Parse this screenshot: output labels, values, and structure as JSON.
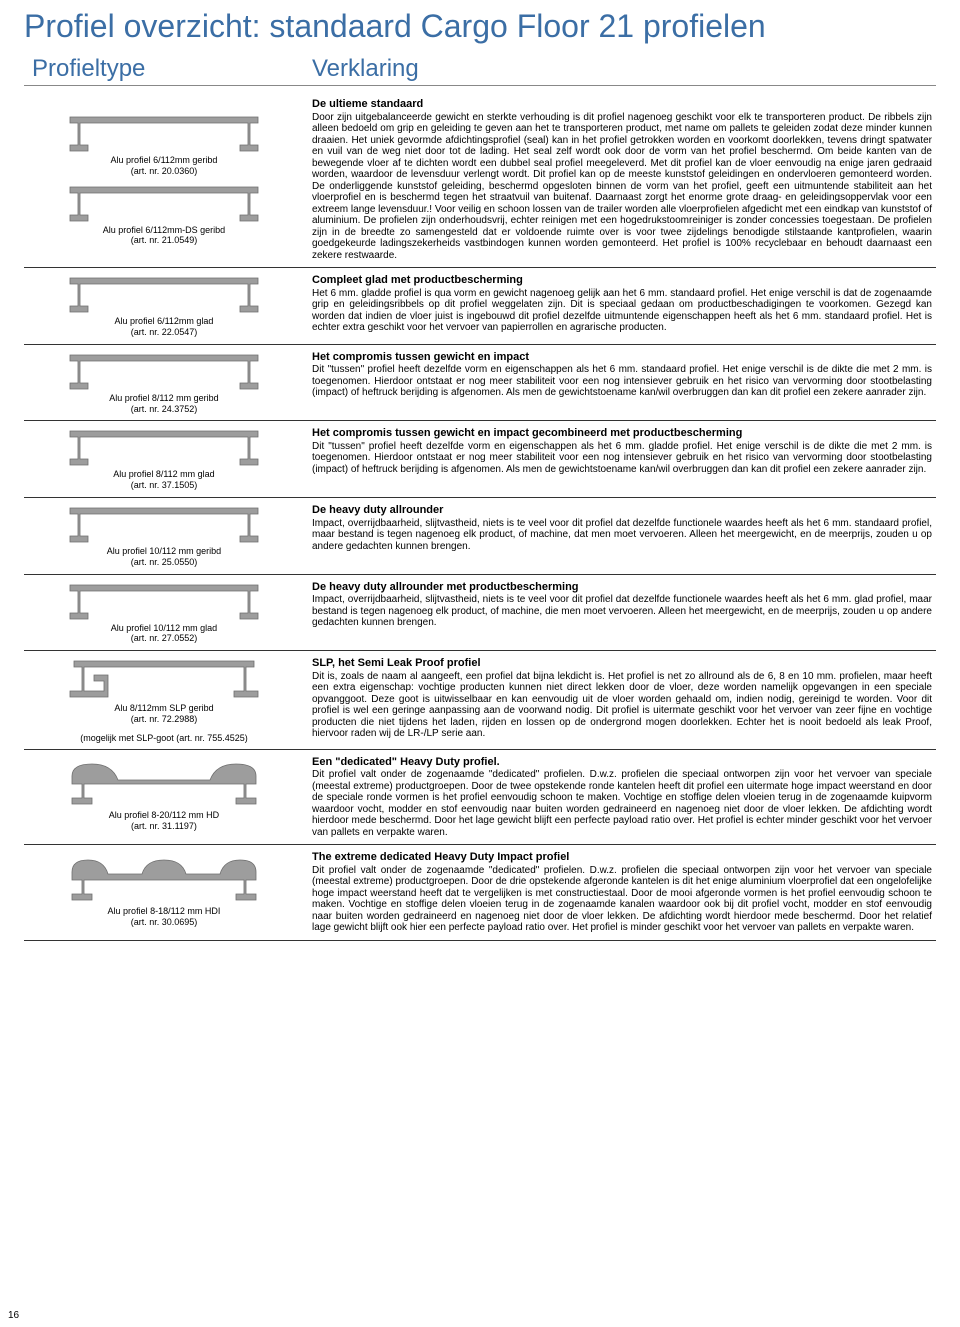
{
  "title": "Profiel overzicht: standaard Cargo Floor 21 profielen",
  "col_left_header": "Profieltype",
  "col_right_header": "Verklaring",
  "colors": {
    "brand_blue": "#3b6ea5",
    "rule": "#333333",
    "profile_fill": "#9d9d9d",
    "profile_edge": "#6e6e6e"
  },
  "page_number": "16",
  "rows": [
    {
      "profiles": [
        {
          "name": "Alu profiel 6/112mm geribd",
          "art": "(art. nr. 20.0360)",
          "shape": "std"
        },
        {
          "name": "Alu profiel 6/112mm-DS geribd",
          "art": "(art. nr. 21.0549)",
          "shape": "std"
        }
      ],
      "heading": "De ultieme standaard",
      "body": "Door zijn uitgebalanceerde gewicht en sterkte verhouding is dit profiel nagenoeg geschikt voor elk te transporteren product. De ribbels zijn alleen bedoeld om grip en geleiding te geven aan het te transporteren product, met name om pallets te geleiden zodat deze minder kunnen draaien. Het uniek gevormde afdichtingsprofiel (seal) kan in het profiel getrokken worden en voorkomt doorlekken, tevens dringt spatwater en vuil van de weg niet door tot de lading. Het seal zelf wordt ook door de vorm van het profiel beschermd. Om beide kanten van de bewegende vloer af te dichten wordt een dubbel seal profiel meegeleverd. Met dit profiel kan de vloer eenvoudig na enige jaren gedraaid worden, waardoor de levensduur verlengt wordt. Dit profiel kan op de meeste kunststof geleidingen en ondervloeren gemonteerd worden. De onderliggende kunststof geleiding, beschermd opgesloten binnen de vorm van het profiel, geeft een uitmuntende stabiliteit aan het vloerprofiel en is beschermd tegen het straatvuil van buitenaf. Daarnaast zorgt het enorme grote draag- en geleidingsoppervlak voor een extreem lange levensduur.! Voor veilig en schoon lossen van de trailer worden alle vloerprofielen afgedicht met een eindkap van kunststof of aluminium. De profielen zijn onderhoudsvrij, echter reinigen met een hogedrukstoomreiniger is zonder concessies toegestaan. De profielen zijn in de breedte zo samengesteld dat er voldoende ruimte over is voor twee zijdelings benodigde stilstaande kantprofielen, waarin goedgekeurde ladingszekerheids vastbindogen kunnen worden gemonteerd. Het profiel is 100% recyclebaar en behoudt daarnaast een zekere restwaarde."
    },
    {
      "profiles": [
        {
          "name": "Alu profiel 6/112mm glad",
          "art": "(art. nr. 22.0547)",
          "shape": "std"
        }
      ],
      "heading": "Compleet glad met productbescherming",
      "body": "Het 6 mm. gladde profiel is qua vorm en gewicht nagenoeg gelijk aan het 6 mm. standaard profiel. Het enige verschil is dat de zogenaamde grip en geleidingsribbels op dit profiel weggelaten zijn. Dit is speciaal gedaan om productbeschadigingen te voorkomen. Gezegd kan worden dat indien de vloer juist is ingebouwd dit profiel dezelfde uitmuntende eigenschappen heeft als het 6 mm. standaard profiel. Het is echter extra geschikt voor het vervoer van papierrollen en agrarische producten."
    },
    {
      "profiles": [
        {
          "name": "Alu profiel 8/112 mm geribd",
          "art": "(art. nr. 24.3752)",
          "shape": "std"
        }
      ],
      "heading": "Het compromis tussen gewicht en impact",
      "body": "Dit \"tussen\" profiel heeft dezelfde vorm en eigenschappen als het 6 mm. standaard profiel. Het enige verschil is de dikte die met 2 mm. is toegenomen. Hierdoor ontstaat er nog meer stabiliteit voor een nog intensiever gebruik en het risico van vervorming door stootbelasting (impact) of heftruck berijding is afgenomen. Als men de gewichtstoename kan/wil overbruggen dan kan dit profiel een zekere aanrader zijn."
    },
    {
      "profiles": [
        {
          "name": "Alu profiel 8/112 mm glad",
          "art": "(art. nr. 37.1505)",
          "shape": "std"
        }
      ],
      "heading": "Het compromis tussen gewicht en impact gecombineerd met productbescherming",
      "body": "Dit \"tussen\" profiel heeft dezelfde vorm en eigenschappen als het 6 mm. gladde profiel. Het enige verschil is de dikte die met 2 mm. is toegenomen. Hierdoor ontstaat er nog meer stabiliteit voor een nog intensiever gebruik en het risico van vervorming door stootbelasting (impact) of heftruck berijding is afgenomen. Als men de gewichtstoename kan/wil overbruggen dan kan dit profiel een zekere aanrader zijn."
    },
    {
      "profiles": [
        {
          "name": "Alu profiel 10/112 mm geribd",
          "art": "(art. nr. 25.0550)",
          "shape": "std"
        }
      ],
      "heading": "De heavy duty allrounder",
      "body": "Impact, overrijdbaarheid, slijtvastheid, niets is te veel voor dit profiel dat dezelfde functionele waardes heeft als het 6 mm. standaard profiel, maar bestand is tegen nagenoeg elk product, of machine, dat men moet vervoeren. Alleen het meergewicht, en de meerprijs, zouden u op andere gedachten kunnen brengen."
    },
    {
      "profiles": [
        {
          "name": "Alu profiel 10/112 mm glad",
          "art": "(art. nr. 27.0552)",
          "shape": "std"
        }
      ],
      "heading": "De heavy duty allrounder met productbescherming",
      "body": "Impact, overrijdbaarheid, slijtvastheid, niets is te veel voor dit profiel dat dezelfde functionele waardes heeft als het 6 mm. glad profiel, maar bestand is tegen nagenoeg elk product, of machine, die men moet vervoeren. Alleen het meergewicht, en de meerprijs, zouden u op andere gedachten kunnen brengen."
    },
    {
      "profiles": [
        {
          "name": "Alu 8/112mm SLP geribd",
          "art": "(art. nr. 72.2988)",
          "shape": "slp"
        }
      ],
      "extra": "(mogelijk met SLP-goot (art. nr. 755.4525)",
      "heading": "SLP, het Semi Leak Proof profiel",
      "body": "Dit is, zoals de naam al aangeeft, een profiel dat bijna lekdicht is. Het profiel is net zo allround als de 6, 8 en 10 mm. profielen, maar heeft een extra eigenschap: vochtige producten kunnen niet direct lekken door de vloer, deze worden namelijk opgevangen in een speciale opvanggoot. Deze goot is uitwisselbaar en kan eenvoudig uit de vloer worden gehaald om, indien nodig, gereinigd te worden. Voor dit profiel is wel een geringe aanpassing aan de voorwand nodig. Dit profiel is uitermate geschikt voor het vervoer van zeer fijne en vochtige producten die niet tijdens het laden, rijden en lossen op de ondergrond mogen doorlekken. Echter het is nooit bedoeld als leak Proof, hiervoor raden wij de LR-/LP serie aan."
    },
    {
      "profiles": [
        {
          "name": "Alu profiel 8-20/112 mm HD",
          "art": "(art. nr. 31.1197)",
          "shape": "hd"
        }
      ],
      "heading": "Een \"dedicated\" Heavy Duty profiel.",
      "body": "Dit profiel valt onder de zogenaamde \"dedicated\" profielen. D.w.z. profielen die speciaal ontworpen zijn voor het vervoer van speciale (meestal extreme) productgroepen. Door de twee opstekende ronde kantelen heeft dit profiel een uitermate hoge impact weerstand en door de speciale ronde vormen is het profiel eenvoudig schoon te maken. Vochtige en stoffige delen vloeien terug in de zogenaamde kuipvorm waardoor vocht, modder en stof eenvoudig naar buiten worden gedraineerd en nagenoeg niet door de vloer lekken. De afdichting wordt hierdoor mede beschermd. Door het lage gewicht blijft een perfecte payload ratio over. Het profiel is echter minder geschikt voor het vervoer van pallets en verpakte waren."
    },
    {
      "profiles": [
        {
          "name": "Alu profiel 8-18/112 mm HDI",
          "art": "(art. nr. 30.0695)",
          "shape": "hdi"
        }
      ],
      "heading": "The extreme dedicated Heavy Duty Impact profiel",
      "body": "Dit profiel valt onder de zogenaamde \"dedicated\" profielen. D.w.z. profielen die speciaal ontworpen zijn voor het vervoer van speciale (meestal extreme) productgroepen. Door de drie opstekende afgeronde kantelen is dit het enige aluminium vloerprofiel dat een ongelofelijke hoge impact weerstand heeft dat te vergelijken is met constructiestaal. Door de mooi afgeronde vormen is het profiel eenvoudig schoon te maken. Vochtige en stoffige delen vloeien terug in de zogenaamde kanalen waardoor ook bij dit profiel vocht, modder en stof eenvoudig naar buiten worden gedraineerd en nagenoeg niet door de vloer lekken. De afdichting wordt hierdoor mede beschermd. Door het relatief lage gewicht blijft ook hier een perfecte payload ratio over. Het profiel is minder geschikt voor het vervoer van pallets en verpakte waren."
    }
  ]
}
